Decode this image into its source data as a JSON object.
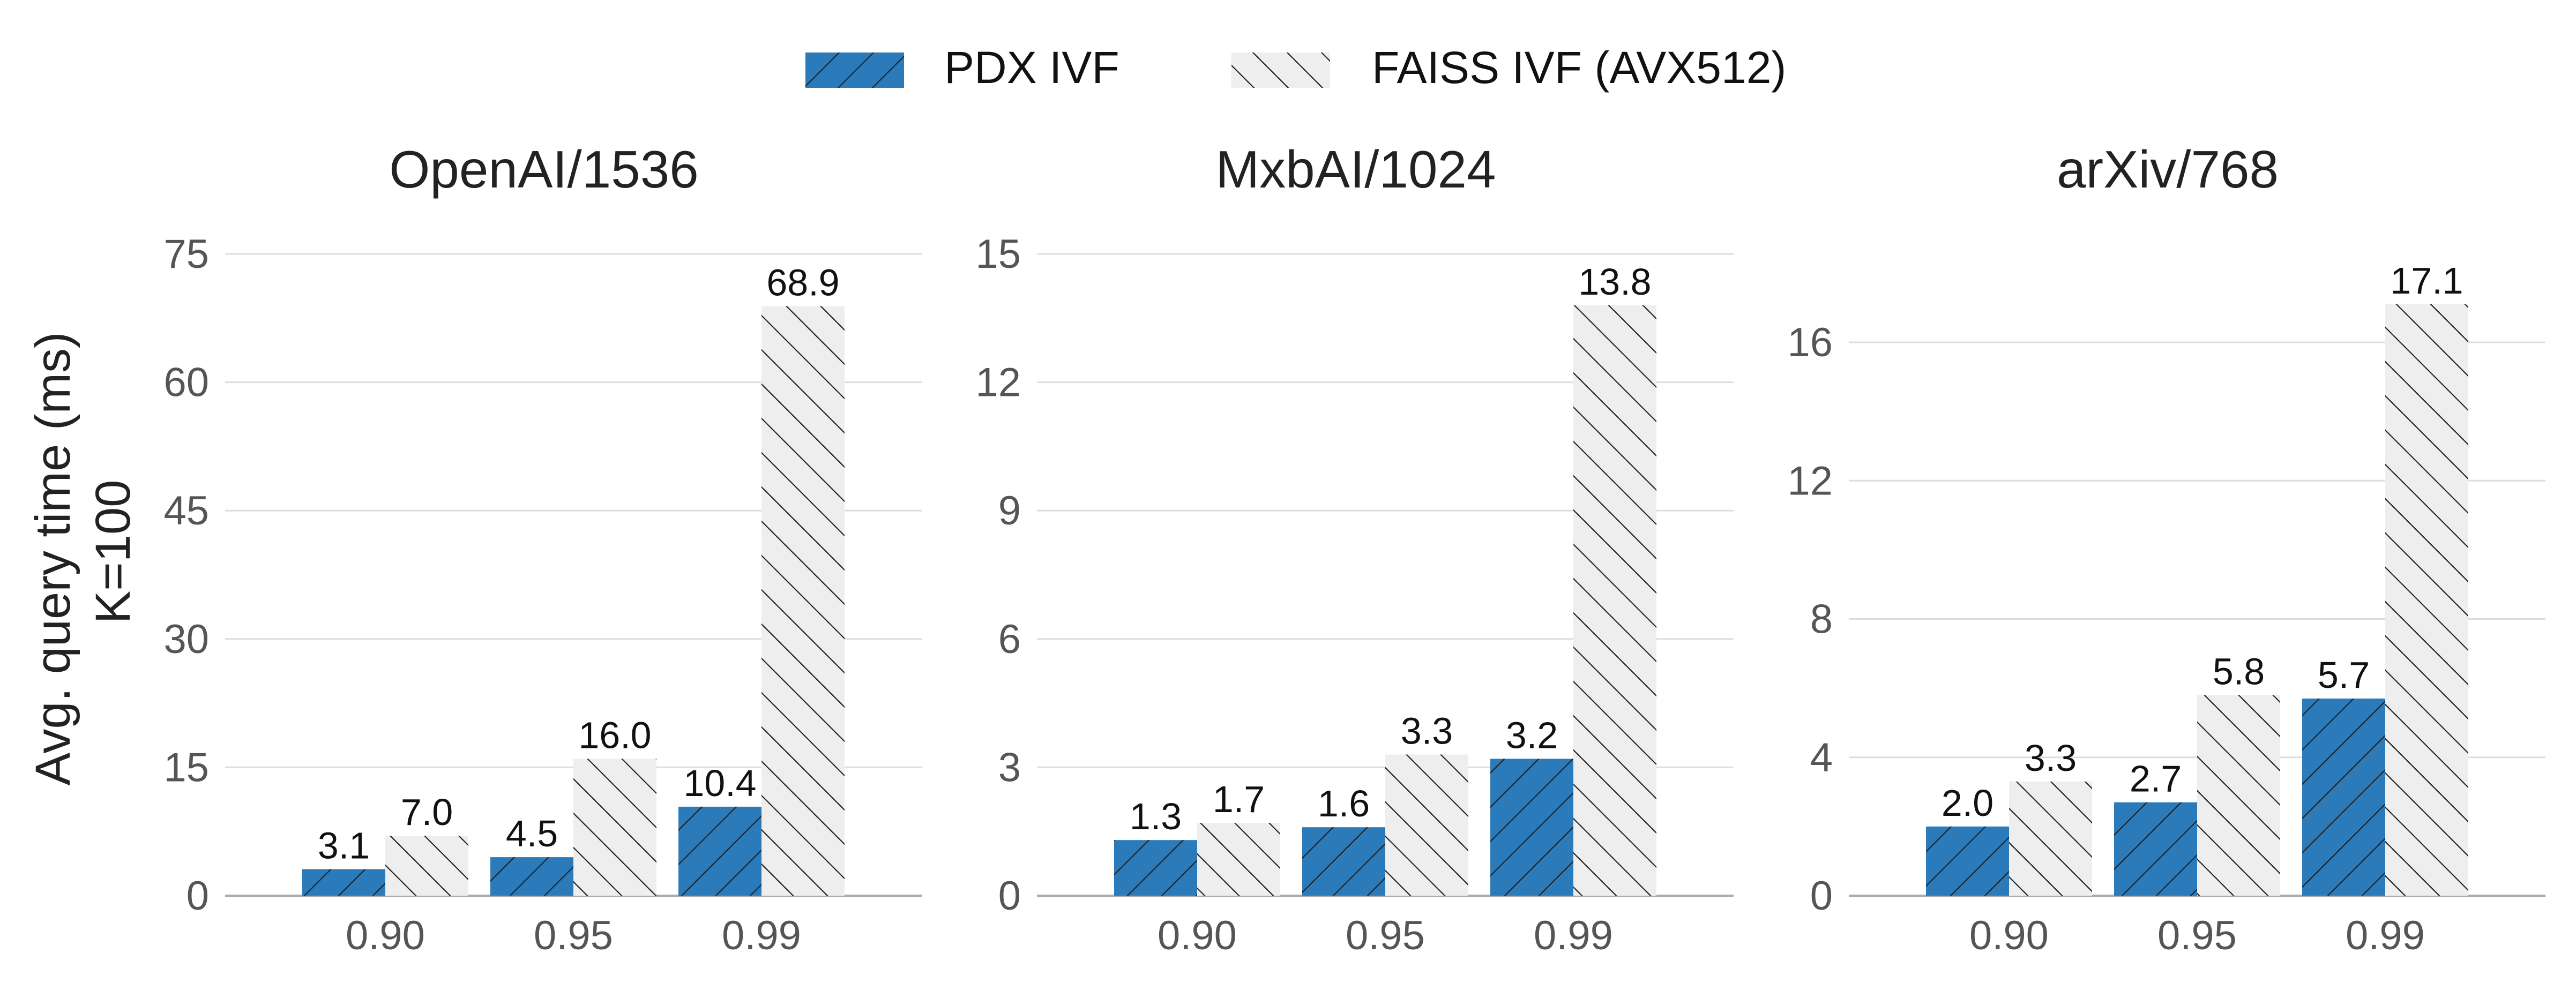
{
  "legend": {
    "items": [
      {
        "label": "PDX IVF",
        "color": "#2b7bba",
        "hatch": "/"
      },
      {
        "label": "FAISS IVF (AVX512)",
        "color": "#eeeeee",
        "hatch": "\\"
      }
    ]
  },
  "ylabel_lines": [
    "Avg. query time (ms)",
    "K=100"
  ],
  "colors": {
    "pdx": "#2b7bba",
    "faiss": "#eeeeee",
    "grid": "#dddddd",
    "tick_text": "#555555",
    "axis": "#aaaaaa"
  },
  "chart_data": [
    {
      "type": "bar",
      "title": "OpenAI/1536",
      "categories": [
        "0.90",
        "0.95",
        "0.99"
      ],
      "series": [
        {
          "name": "PDX IVF",
          "values": [
            3.1,
            4.5,
            10.4
          ],
          "labels": [
            "3.1",
            "4.5",
            "10.4"
          ]
        },
        {
          "name": "FAISS IVF (AVX512)",
          "values": [
            7.0,
            16.0,
            68.9
          ],
          "labels": [
            "7.0",
            "16.0",
            "68.9"
          ]
        }
      ],
      "ylim": [
        0,
        75
      ],
      "yticks": [
        0,
        15,
        30,
        45,
        60,
        75
      ],
      "ylabel": "Avg. query time (ms)\nK=100",
      "grid": true
    },
    {
      "type": "bar",
      "title": "MxbAI/1024",
      "categories": [
        "0.90",
        "0.95",
        "0.99"
      ],
      "series": [
        {
          "name": "PDX IVF",
          "values": [
            1.3,
            1.6,
            3.2
          ],
          "labels": [
            "1.3",
            "1.6",
            "3.2"
          ]
        },
        {
          "name": "FAISS IVF (AVX512)",
          "values": [
            1.7,
            3.3,
            13.8
          ],
          "labels": [
            "1.7",
            "3.3",
            "13.8"
          ]
        }
      ],
      "ylim": [
        0,
        15
      ],
      "yticks": [
        0,
        3,
        6,
        9,
        12,
        15
      ],
      "grid": true
    },
    {
      "type": "bar",
      "title": "arXiv/768",
      "categories": [
        "0.90",
        "0.95",
        "0.99"
      ],
      "series": [
        {
          "name": "PDX IVF",
          "values": [
            2.0,
            2.7,
            5.7
          ],
          "labels": [
            "2.0",
            "2.7",
            "5.7"
          ]
        },
        {
          "name": "FAISS IVF (AVX512)",
          "values": [
            3.3,
            5.8,
            17.1
          ],
          "labels": [
            "3.3",
            "5.8",
            "17.1"
          ]
        }
      ],
      "ylim": [
        0,
        17.1
      ],
      "yticks": [
        0,
        4,
        8,
        12,
        16
      ],
      "grid": true
    }
  ]
}
